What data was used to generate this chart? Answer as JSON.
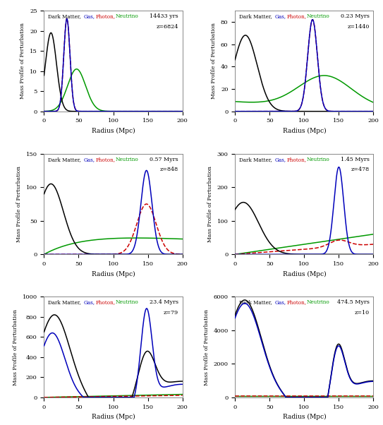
{
  "panels": [
    {
      "time": "14433 yrs",
      "redshift": "z=6824",
      "ylim": [
        0,
        25
      ],
      "yticks": [
        0,
        5,
        10,
        15,
        20,
        25
      ],
      "xticks": [
        0,
        50,
        100,
        150,
        200
      ]
    },
    {
      "time": "0.23 Myrs",
      "redshift": "z=1440",
      "ylim": [
        0,
        90
      ],
      "yticks": [
        0,
        20,
        40,
        60,
        80
      ],
      "xticks": [
        0,
        50,
        100,
        150,
        200
      ]
    },
    {
      "time": "0.57 Myrs",
      "redshift": "z=848",
      "ylim": [
        0,
        150
      ],
      "yticks": [
        0,
        50,
        100,
        150
      ],
      "xticks": [
        0,
        50,
        100,
        150,
        200
      ]
    },
    {
      "time": "1.45 Myrs",
      "redshift": "z=478",
      "ylim": [
        0,
        300
      ],
      "yticks": [
        0,
        100,
        200,
        300
      ],
      "xticks": [
        0,
        50,
        100,
        150,
        200
      ]
    },
    {
      "time": "23.4 Myrs",
      "redshift": "z=79",
      "ylim": [
        0,
        1000
      ],
      "yticks": [
        0,
        200,
        400,
        600,
        800,
        1000
      ],
      "xticks": [
        0,
        50,
        100,
        150,
        200
      ]
    },
    {
      "time": "474.5 Myrs",
      "redshift": "z=10",
      "ylim": [
        0,
        6000
      ],
      "yticks": [
        0,
        2000,
        4000,
        6000
      ],
      "xticks": [
        0,
        50,
        100,
        150,
        200
      ]
    }
  ],
  "colors": {
    "dark_matter": "#000000",
    "gas": "#0000bb",
    "photon": "#cc0000",
    "neutrino": "#009900"
  },
  "xlabel": "Radius (Mpc)",
  "ylabel": "Mass Profile of Perturbation",
  "xlim": [
    0,
    200
  ],
  "background": "#ffffff"
}
